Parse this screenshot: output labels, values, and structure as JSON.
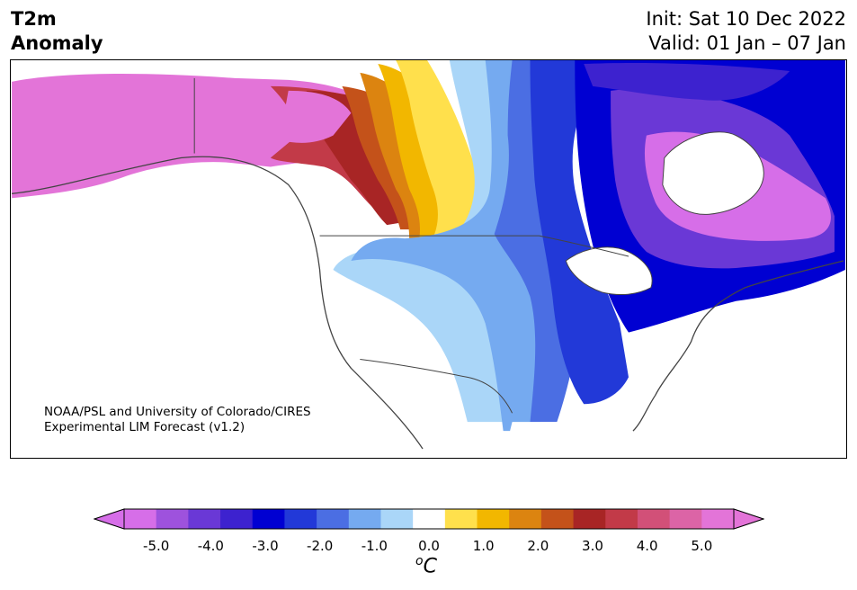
{
  "header": {
    "variable": "T2m",
    "variable_sub": "Anomaly",
    "init": "Init: Sat 10 Dec 2022",
    "valid": "Valid: 01 Jan – 07 Jan"
  },
  "credit": {
    "line1": "NOAA/PSL and University of Colorado/CIRES",
    "line2": "Experimental LIM Forecast (v1.2)"
  },
  "colorbar": {
    "unit_base": "C",
    "unit_sup": "o",
    "tick_labels": [
      "-5.0",
      "-4.0",
      "-3.0",
      "-2.0",
      "-1.0",
      "0.0",
      "1.0",
      "2.0",
      "3.0",
      "4.0",
      "5.0"
    ],
    "colors": [
      "#d66ee8",
      "#9e52dd",
      "#6a38d6",
      "#3d22cf",
      "#0000d2",
      "#2239d8",
      "#4b6ee3",
      "#75aaf0",
      "#aad6f8",
      "#ffffff",
      "#ffe04c",
      "#f2b700",
      "#dc8410",
      "#c4521a",
      "#a82525",
      "#c23a48",
      "#d25078",
      "#dc64a6",
      "#e374d8"
    ],
    "under_color": "#d66ee8",
    "over_color": "#e374d8"
  },
  "map": {
    "region": "North America",
    "anomaly_palette": {
      "strong_cold": "#0000d2",
      "very_cold": "#3d22cf",
      "extreme_cold": "#d66ee8",
      "cold": "#2239d8",
      "cool": "#4b6ee3",
      "mild_cool": "#75aaf0",
      "slight_cool": "#aad6f8",
      "neutral": "#ffffff",
      "slight_warm": "#ffe04c",
      "warm": "#f2b700",
      "hot": "#c4521a",
      "very_hot": "#a82525",
      "extreme_hot": "#e374d8"
    }
  }
}
